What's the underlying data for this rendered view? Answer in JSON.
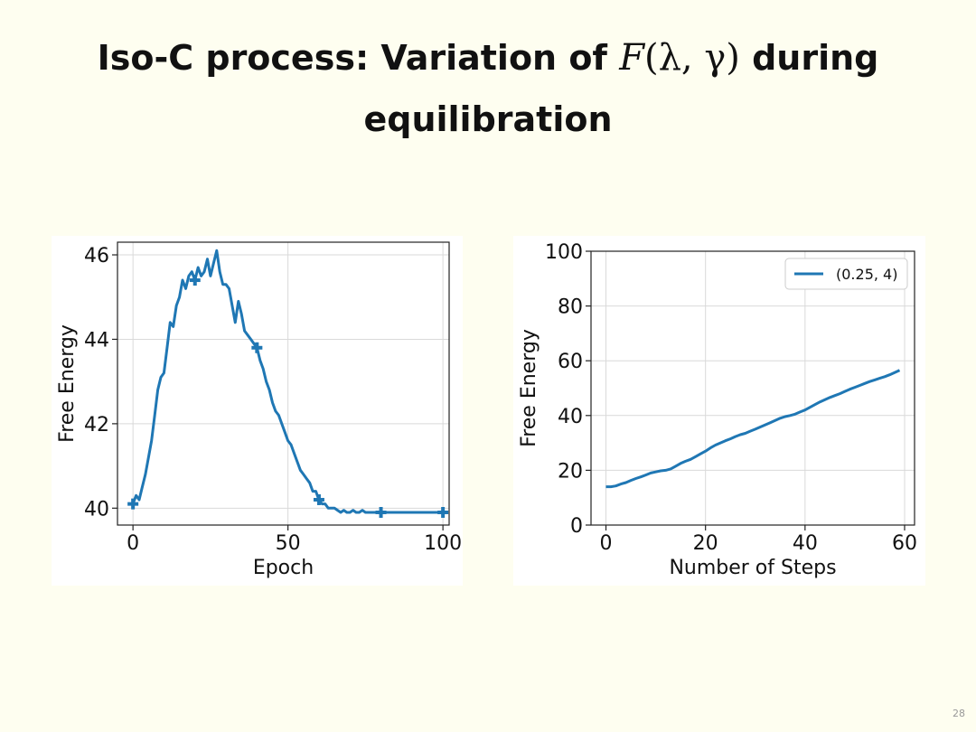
{
  "slide": {
    "title_line1_prefix": "Iso-C process: Variation of ",
    "title_math_F": "F",
    "title_math_args": "(λ, γ)",
    "title_line1_suffix": " during",
    "title_line2": "equilibration",
    "page_number": "28"
  },
  "colors": {
    "series": "#1f77b4",
    "grid": "#d9d9d9",
    "axes": "#222222"
  },
  "chart_data": [
    {
      "type": "line",
      "xlabel": "Epoch",
      "ylabel": "Free Energy",
      "xlim": [
        -5,
        102
      ],
      "ylim": [
        39.6,
        46.3
      ],
      "xticks": [
        0,
        50,
        100
      ],
      "yticks": [
        40,
        42,
        44,
        46
      ],
      "grid": true,
      "series": [
        {
          "x": [
            0,
            1,
            2,
            3,
            4,
            5,
            6,
            7,
            8,
            9,
            10,
            11,
            12,
            13,
            14,
            15,
            16,
            17,
            18,
            19,
            20,
            21,
            22,
            23,
            24,
            25,
            26,
            27,
            28,
            29,
            30,
            31,
            32,
            33,
            34,
            35,
            36,
            37,
            38,
            39,
            40,
            41,
            42,
            43,
            44,
            45,
            46,
            47,
            48,
            49,
            50,
            51,
            52,
            53,
            54,
            55,
            56,
            57,
            58,
            59,
            60,
            61,
            62,
            63,
            64,
            65,
            66,
            67,
            68,
            69,
            70,
            71,
            72,
            73,
            74,
            75,
            76,
            77,
            78,
            79,
            80,
            81,
            82,
            83,
            84,
            85,
            86,
            87,
            88,
            89,
            90,
            91,
            92,
            93,
            94,
            95,
            96,
            97,
            98,
            99,
            100
          ],
          "y": [
            40.1,
            40.3,
            40.2,
            40.5,
            40.8,
            41.2,
            41.6,
            42.2,
            42.8,
            43.1,
            43.2,
            43.8,
            44.4,
            44.3,
            44.8,
            45.0,
            45.4,
            45.2,
            45.5,
            45.6,
            45.4,
            45.7,
            45.5,
            45.6,
            45.9,
            45.5,
            45.8,
            46.1,
            45.6,
            45.3,
            45.3,
            45.2,
            44.8,
            44.4,
            44.9,
            44.6,
            44.2,
            44.1,
            44.0,
            43.9,
            43.8,
            43.5,
            43.3,
            43.0,
            42.8,
            42.5,
            42.3,
            42.2,
            42.0,
            41.8,
            41.6,
            41.5,
            41.3,
            41.1,
            40.9,
            40.8,
            40.7,
            40.6,
            40.4,
            40.4,
            40.2,
            40.1,
            40.1,
            40.0,
            40.0,
            40.0,
            39.95,
            39.9,
            39.95,
            39.9,
            39.9,
            39.95,
            39.9,
            39.9,
            39.95,
            39.9,
            39.9,
            39.9,
            39.9,
            39.9,
            39.9,
            39.9,
            39.9,
            39.9,
            39.9,
            39.9,
            39.9,
            39.9,
            39.9,
            39.9,
            39.9,
            39.9,
            39.9,
            39.9,
            39.9,
            39.9,
            39.9,
            39.9,
            39.9,
            39.9,
            39.9
          ]
        }
      ],
      "markers": {
        "shape": "plus",
        "x": [
          0,
          20,
          40,
          60,
          80,
          100
        ]
      }
    },
    {
      "type": "line",
      "xlabel": "Number of Steps",
      "ylabel": "Free Energy",
      "xlim": [
        -3,
        62
      ],
      "ylim": [
        0,
        100
      ],
      "xticks": [
        0,
        20,
        40,
        60
      ],
      "yticks": [
        0,
        20,
        40,
        60,
        80,
        100
      ],
      "grid": true,
      "legend": {
        "placement": "top-right"
      },
      "series": [
        {
          "name": "(0.25, 4)",
          "x": [
            0,
            1,
            2,
            3,
            4,
            5,
            6,
            7,
            8,
            9,
            10,
            11,
            12,
            13,
            14,
            15,
            16,
            17,
            18,
            19,
            20,
            21,
            22,
            23,
            24,
            25,
            26,
            27,
            28,
            29,
            30,
            31,
            32,
            33,
            34,
            35,
            36,
            37,
            38,
            39,
            40,
            41,
            42,
            43,
            44,
            45,
            46,
            47,
            48,
            49,
            50,
            51,
            52,
            53,
            54,
            55,
            56,
            57,
            58,
            59
          ],
          "y": [
            14.0,
            14.0,
            14.3,
            15.0,
            15.5,
            16.3,
            17.0,
            17.6,
            18.3,
            19.0,
            19.4,
            19.8,
            20.0,
            20.5,
            21.5,
            22.5,
            23.3,
            24.0,
            25.0,
            26.0,
            27.0,
            28.2,
            29.2,
            30.0,
            30.8,
            31.5,
            32.3,
            33.0,
            33.5,
            34.3,
            35.0,
            35.8,
            36.6,
            37.4,
            38.2,
            39.0,
            39.6,
            40.0,
            40.5,
            41.3,
            42.0,
            43.0,
            44.0,
            45.0,
            45.8,
            46.6,
            47.3,
            48.0,
            48.8,
            49.6,
            50.3,
            51.0,
            51.7,
            52.4,
            53.0,
            53.6,
            54.2,
            54.9,
            55.7,
            56.5
          ]
        }
      ]
    }
  ]
}
